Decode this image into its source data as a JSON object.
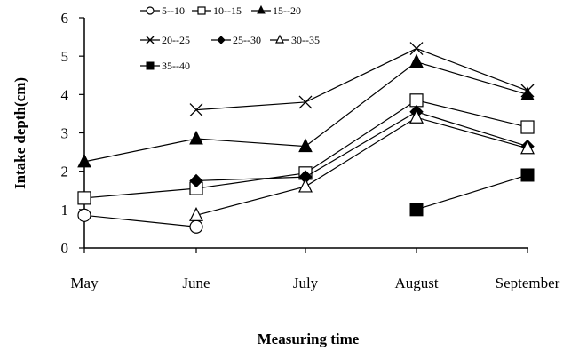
{
  "chart_data": {
    "type": "line",
    "xlabel": "Measuring time",
    "ylabel": "Intake depth(cm)",
    "categories": [
      "May",
      "June",
      "July",
      "August",
      "September"
    ],
    "ylim": [
      0,
      6
    ],
    "yticks": [
      "0",
      "1",
      "2",
      "3",
      "4",
      "5",
      "6"
    ],
    "grid": false,
    "legend_position": "top",
    "series": [
      {
        "name": "5--10",
        "marker": "circle-open",
        "values": [
          0.85,
          0.55,
          null,
          null,
          null
        ]
      },
      {
        "name": "10--15",
        "marker": "square-open",
        "values": [
          1.3,
          1.55,
          1.95,
          3.85,
          3.15
        ]
      },
      {
        "name": "15--20",
        "marker": "triangle-filled",
        "values": [
          2.25,
          2.85,
          2.65,
          4.85,
          4.0
        ]
      },
      {
        "name": "20--25",
        "marker": "x",
        "values": [
          null,
          3.6,
          3.8,
          5.2,
          4.1
        ]
      },
      {
        "name": "25--30",
        "marker": "diamond-filled",
        "values": [
          null,
          1.75,
          1.85,
          3.55,
          2.65
        ]
      },
      {
        "name": "30--35",
        "marker": "triangle-open",
        "values": [
          null,
          0.85,
          1.6,
          3.4,
          2.6
        ]
      },
      {
        "name": "35--40",
        "marker": "square-filled",
        "values": [
          null,
          null,
          null,
          1.0,
          1.9
        ]
      }
    ]
  }
}
